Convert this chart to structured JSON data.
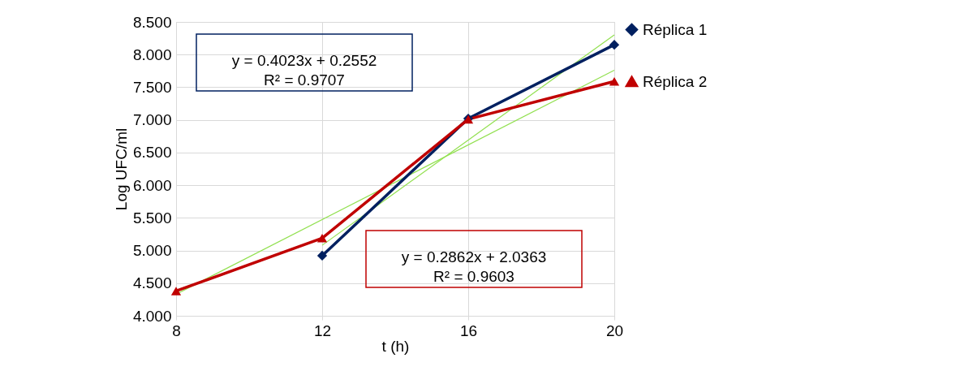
{
  "chart_data": {
    "type": "line",
    "xlabel": "t (h)",
    "ylabel": "Log UFC/ml",
    "xlim": [
      8,
      20
    ],
    "xticks": [
      8,
      12,
      16,
      20
    ],
    "ylim": [
      4,
      8.5
    ],
    "yticks": [
      {
        "value": 4,
        "label": "4.000"
      },
      {
        "value": 4.5,
        "label": "4.500"
      },
      {
        "value": 5,
        "label": "5.000"
      },
      {
        "value": 5.5,
        "label": "5.500"
      },
      {
        "value": 6,
        "label": "6.000"
      },
      {
        "value": 6.5,
        "label": "6.500"
      },
      {
        "value": 7,
        "label": "7.000"
      },
      {
        "value": 7.5,
        "label": "7.500"
      },
      {
        "value": 8,
        "label": "8.000"
      },
      {
        "value": 8.5,
        "label": "8.500"
      }
    ],
    "grid": true,
    "legend": "right",
    "line_style": "solid",
    "series": [
      {
        "name": "Réplica 1",
        "color": "#002060",
        "marker": "diamond",
        "x": [
          12,
          16,
          20
        ],
        "values": [
          4.92,
          7.02,
          8.15
        ]
      },
      {
        "name": "Réplica 2",
        "color": "#c00000",
        "marker": "triangle",
        "x": [
          8,
          12,
          16,
          20
        ],
        "values": [
          4.38,
          5.19,
          7.01,
          7.59
        ]
      },
      {
        "type": "line",
        "color": "#92e050",
        "marker": "none",
        "x": [
          12,
          20
        ],
        "values": [
          5.08,
          8.3
        ]
      },
      {
        "type": "line",
        "color": "#92e050",
        "marker": "none",
        "x": [
          8,
          20
        ],
        "values": [
          4.33,
          7.76
        ]
      }
    ],
    "annotations": [
      "y = 0.4023x + 0.2552\nR² = 0.9707",
      "y = 0.2862x + 2.0363\nR² = 0.9603"
    ]
  }
}
